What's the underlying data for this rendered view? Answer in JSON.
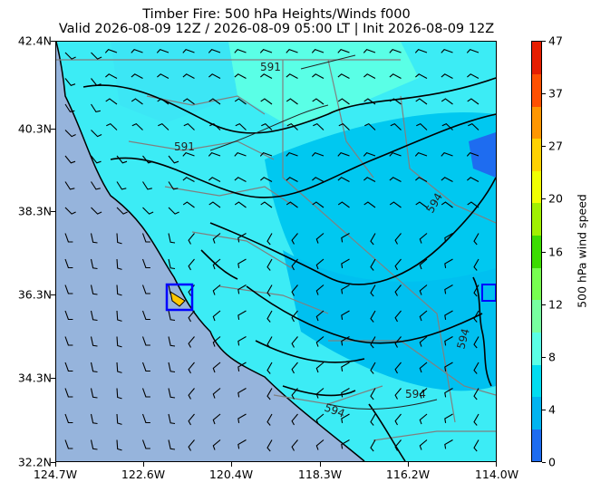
{
  "title_line1": "Timber Fire: 500 hPa Heights/Winds f000",
  "title_line2": "Valid 2026-08-09 12Z / 2026-08-09 05:00 LT | Init 2026-08-09 12Z",
  "y_ticks": [
    "42.4N",
    "40.3N",
    "38.3N",
    "36.3N",
    "34.3N",
    "32.2N"
  ],
  "x_ticks": [
    "124.7W",
    "122.6W",
    "120.4W",
    "118.3W",
    "116.2W",
    "114.0W"
  ],
  "colorbar": {
    "label": "500 hPa wind speed",
    "ticks": [
      "0",
      "4",
      "8",
      "12",
      "16",
      "20",
      "27",
      "37",
      "47"
    ],
    "colors": [
      "#1e6cf0",
      "#00b4f0",
      "#00dcf0",
      "#5affe6",
      "#78ffa0",
      "#78ff50",
      "#3cdc00",
      "#a0f000",
      "#f0ff00",
      "#ffd200",
      "#ff9600",
      "#ff5000",
      "#e61e00"
    ]
  },
  "contour_labels": [
    "591",
    "591",
    "594",
    "594",
    "594",
    "594"
  ],
  "colors": {
    "ocean": "#96b4dc",
    "fire_marker": "#ffc800",
    "fire_box": "#0000ff"
  }
}
